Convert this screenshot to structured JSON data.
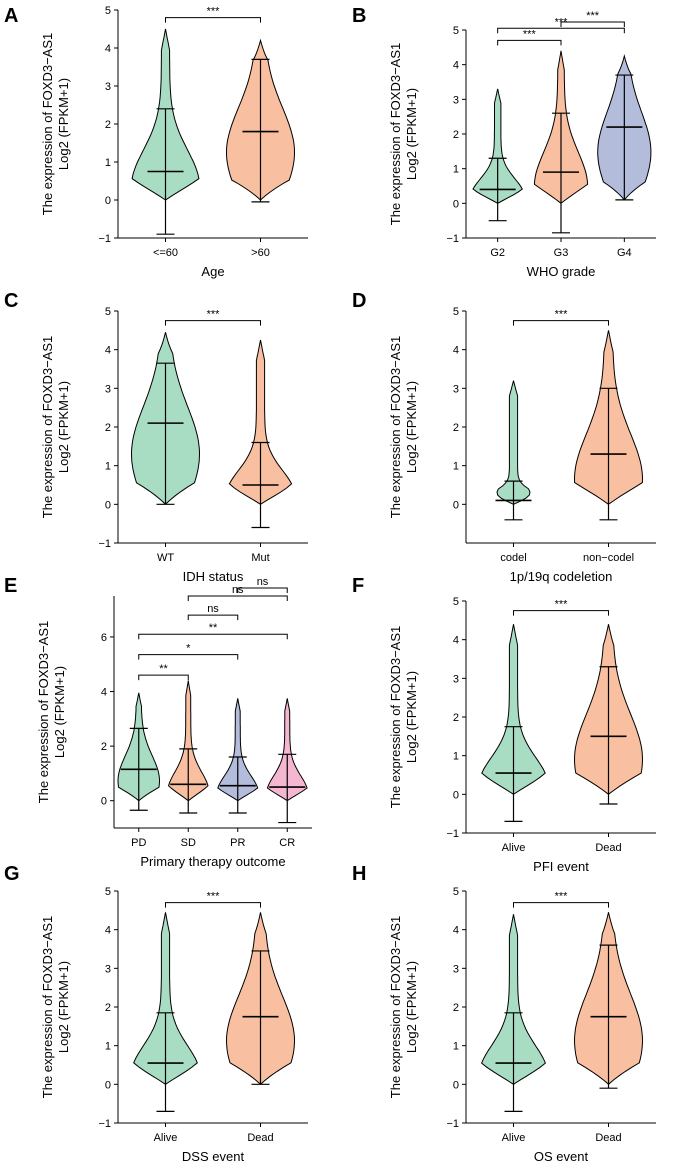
{
  "colors": {
    "green": "#a8dcc3",
    "orange": "#f8bfa0",
    "blue": "#b4bcdc",
    "pink": "#f5b6d2",
    "outline": "#000000"
  },
  "y_label_line1": "The expression of FOXD3−AS1",
  "y_label_line2": "Log2 (FPKM+1)",
  "chart_data": [
    {
      "panel": "A",
      "type": "violin",
      "xlabel": "Age",
      "ylim": [
        -1,
        5
      ],
      "yticks": [
        "-1",
        "0",
        "1",
        "2",
        "3",
        "4",
        "5"
      ],
      "categories": [
        "<=60",
        ">60"
      ],
      "series": [
        {
          "name": "<=60",
          "color": "green",
          "median": 0.75,
          "q1": 0.0,
          "q3": 2.4,
          "min": -0.9,
          "max": 4.5
        },
        {
          "name": ">60",
          "color": "orange",
          "median": 1.8,
          "q1": 0.7,
          "q3": 3.7,
          "min": -0.05,
          "max": 4.2
        }
      ],
      "significance": [
        {
          "from": 0,
          "to": 1,
          "label": "***",
          "y": 4.8
        }
      ]
    },
    {
      "panel": "B",
      "type": "violin",
      "xlabel": "WHO grade",
      "ylim": [
        -1,
        5
      ],
      "yticks": [
        "-1",
        "0",
        "1",
        "2",
        "3",
        "4",
        "5"
      ],
      "categories": [
        "G2",
        "G3",
        "G4"
      ],
      "series": [
        {
          "name": "G2",
          "color": "green",
          "median": 0.4,
          "q1": 0.0,
          "q3": 1.3,
          "min": -0.5,
          "max": 3.3
        },
        {
          "name": "G3",
          "color": "orange",
          "median": 0.9,
          "q1": 0.1,
          "q3": 2.6,
          "min": -0.85,
          "max": 4.4
        },
        {
          "name": "G4",
          "color": "blue",
          "median": 2.2,
          "q1": 0.75,
          "q3": 3.7,
          "min": 0.1,
          "max": 4.25
        }
      ],
      "significance": [
        {
          "from": 0,
          "to": 1,
          "label": "***",
          "y": 4.7
        },
        {
          "from": 0,
          "to": 2,
          "label": "***",
          "y": 5.05
        },
        {
          "from": 1,
          "to": 2,
          "label": "***",
          "y": 5.4
        }
      ]
    },
    {
      "panel": "C",
      "type": "violin",
      "xlabel": "IDH status",
      "ylim": [
        -1,
        5
      ],
      "yticks": [
        "-1",
        "0",
        "1",
        "2",
        "3",
        "4",
        "5"
      ],
      "categories": [
        "WT",
        "Mut"
      ],
      "series": [
        {
          "name": "WT",
          "color": "green",
          "median": 2.1,
          "q1": 0.5,
          "q3": 3.65,
          "min": 0.0,
          "max": 4.45
        },
        {
          "name": "Mut",
          "color": "orange",
          "median": 0.5,
          "q1": 0.0,
          "q3": 1.6,
          "min": -0.6,
          "max": 4.25
        }
      ],
      "significance": [
        {
          "from": 0,
          "to": 1,
          "label": "***",
          "y": 4.75
        }
      ]
    },
    {
      "panel": "D",
      "type": "violin",
      "xlabel": "1p/19q codeletion",
      "ylim": [
        -1,
        5
      ],
      "yticks": [
        "0",
        "1",
        "2",
        "3",
        "4",
        "5"
      ],
      "categories": [
        "codel",
        "non−codel"
      ],
      "series": [
        {
          "name": "codel",
          "color": "green",
          "median": 0.1,
          "q1": 0.0,
          "q3": 0.6,
          "min": -0.4,
          "max": 3.2
        },
        {
          "name": "non−codel",
          "color": "orange",
          "median": 1.3,
          "q1": 0.0,
          "q3": 3.0,
          "min": -0.4,
          "max": 4.5
        }
      ],
      "significance": [
        {
          "from": 0,
          "to": 1,
          "label": "***",
          "y": 4.75
        }
      ]
    },
    {
      "panel": "E",
      "type": "violin",
      "xlabel": "Primary therapy outcome",
      "ylim": [
        -1,
        7.5
      ],
      "yticks": [
        "0",
        "2",
        "4",
        "6"
      ],
      "categories": [
        "PD",
        "SD",
        "PR",
        "CR"
      ],
      "series": [
        {
          "name": "PD",
          "color": "green",
          "median": 1.15,
          "q1": 0.3,
          "q3": 2.65,
          "min": -0.35,
          "max": 3.95
        },
        {
          "name": "SD",
          "color": "orange",
          "median": 0.6,
          "q1": 0.0,
          "q3": 1.9,
          "min": -0.45,
          "max": 4.4
        },
        {
          "name": "PR",
          "color": "blue",
          "median": 0.55,
          "q1": 0.0,
          "q3": 1.6,
          "min": -0.45,
          "max": 3.75
        },
        {
          "name": "CR",
          "color": "pink",
          "median": 0.5,
          "q1": 0.0,
          "q3": 1.7,
          "min": -0.8,
          "max": 3.75
        }
      ],
      "significance": [
        {
          "from": 0,
          "to": 1,
          "label": "**",
          "y": 4.6
        },
        {
          "from": 0,
          "to": 2,
          "label": "*",
          "y": 5.35
        },
        {
          "from": 0,
          "to": 3,
          "label": "**",
          "y": 6.1
        },
        {
          "from": 1,
          "to": 2,
          "label": "ns",
          "y": 6.8
        },
        {
          "from": 1,
          "to": 3,
          "label": "ns",
          "y": 7.5
        },
        {
          "from": 2,
          "to": 3,
          "label": "ns",
          "y": 8.2
        }
      ]
    },
    {
      "panel": "F",
      "type": "violin",
      "xlabel": "PFI event",
      "ylim": [
        -1,
        5
      ],
      "yticks": [
        "-1",
        "0",
        "1",
        "2",
        "3",
        "4",
        "5"
      ],
      "categories": [
        "Alive",
        "Dead"
      ],
      "series": [
        {
          "name": "Alive",
          "color": "green",
          "median": 0.55,
          "q1": 0.0,
          "q3": 1.75,
          "min": -0.7,
          "max": 4.4
        },
        {
          "name": "Dead",
          "color": "orange",
          "median": 1.5,
          "q1": 0.3,
          "q3": 3.3,
          "min": -0.25,
          "max": 4.4
        }
      ],
      "significance": [
        {
          "from": 0,
          "to": 1,
          "label": "***",
          "y": 4.75
        }
      ]
    },
    {
      "panel": "G",
      "type": "violin",
      "xlabel": "DSS event",
      "ylim": [
        -1,
        5
      ],
      "yticks": [
        "-1",
        "0",
        "1",
        "2",
        "3",
        "4",
        "5"
      ],
      "categories": [
        "Alive",
        "Dead"
      ],
      "series": [
        {
          "name": "Alive",
          "color": "green",
          "median": 0.55,
          "q1": 0.0,
          "q3": 1.85,
          "min": -0.7,
          "max": 4.45
        },
        {
          "name": "Dead",
          "color": "orange",
          "median": 1.75,
          "q1": 0.5,
          "q3": 3.45,
          "min": 0.0,
          "max": 4.45
        }
      ],
      "significance": [
        {
          "from": 0,
          "to": 1,
          "label": "***",
          "y": 4.7
        }
      ]
    },
    {
      "panel": "H",
      "type": "violin",
      "xlabel": "OS event",
      "ylim": [
        -1,
        5
      ],
      "yticks": [
        "-1",
        "0",
        "1",
        "2",
        "3",
        "4",
        "5"
      ],
      "categories": [
        "Alive",
        "Dead"
      ],
      "series": [
        {
          "name": "Alive",
          "color": "green",
          "median": 0.55,
          "q1": 0.0,
          "q3": 1.85,
          "min": -0.7,
          "max": 4.4
        },
        {
          "name": "Dead",
          "color": "orange",
          "median": 1.75,
          "q1": 0.5,
          "q3": 3.6,
          "min": -0.1,
          "max": 4.45
        }
      ],
      "significance": [
        {
          "from": 0,
          "to": 1,
          "label": "***",
          "y": 4.7
        }
      ]
    }
  ]
}
